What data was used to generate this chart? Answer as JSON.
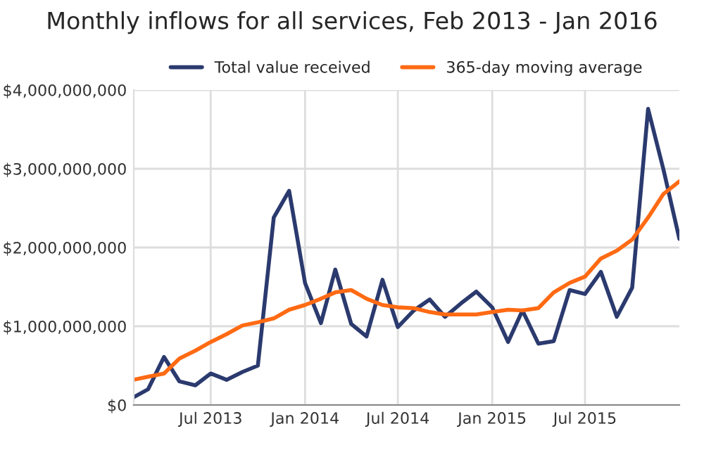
{
  "chart_data": {
    "type": "line",
    "title": "Monthly inflows for all services, Feb 2013 - Jan 2016",
    "x": [
      "2013-02",
      "2013-03",
      "2013-04",
      "2013-05",
      "2013-06",
      "2013-07",
      "2013-08",
      "2013-09",
      "2013-10",
      "2013-11",
      "2013-12",
      "2014-01",
      "2014-02",
      "2014-03",
      "2014-04",
      "2014-05",
      "2014-06",
      "2014-07",
      "2014-08",
      "2014-09",
      "2014-10",
      "2014-11",
      "2014-12",
      "2015-01",
      "2015-02",
      "2015-03",
      "2015-04",
      "2015-05",
      "2015-06",
      "2015-07",
      "2015-08",
      "2015-09",
      "2015-10",
      "2015-11",
      "2015-12",
      "2016-01"
    ],
    "series": [
      {
        "name": "Total value received",
        "color": "#2b3a6e",
        "values": [
          100000000,
          200000000,
          610000000,
          300000000,
          250000000,
          400000000,
          320000000,
          420000000,
          500000000,
          2380000000,
          2720000000,
          1550000000,
          1040000000,
          1720000000,
          1030000000,
          870000000,
          1590000000,
          990000000,
          1200000000,
          1340000000,
          1120000000,
          1290000000,
          1440000000,
          1240000000,
          800000000,
          1200000000,
          780000000,
          810000000,
          1460000000,
          1410000000,
          1690000000,
          1120000000,
          1490000000,
          3760000000,
          2990000000,
          2110000000
        ]
      },
      {
        "name": "365-day moving average",
        "color": "#ff6a13",
        "values": [
          320000000,
          360000000,
          400000000,
          590000000,
          690000000,
          800000000,
          900000000,
          1010000000,
          1050000000,
          1100000000,
          1210000000,
          1270000000,
          1350000000,
          1430000000,
          1460000000,
          1350000000,
          1270000000,
          1240000000,
          1230000000,
          1180000000,
          1150000000,
          1150000000,
          1150000000,
          1180000000,
          1210000000,
          1200000000,
          1230000000,
          1430000000,
          1550000000,
          1630000000,
          1860000000,
          1960000000,
          2100000000,
          2380000000,
          2680000000,
          2840000000
        ]
      }
    ],
    "xlim": [
      "2013-02",
      "2016-01"
    ],
    "xticks": [
      {
        "value": "2013-07",
        "label": "Jul 2013"
      },
      {
        "value": "2014-01",
        "label": "Jan 2014"
      },
      {
        "value": "2014-07",
        "label": "Jul 2014"
      },
      {
        "value": "2015-01",
        "label": "Jan 2015"
      },
      {
        "value": "2015-07",
        "label": "Jul 2015"
      }
    ],
    "ylim": [
      0,
      4000000000
    ],
    "yticks": [
      {
        "value": 0,
        "label": "$0"
      },
      {
        "value": 1000000000,
        "label": "$1,000,000,000"
      },
      {
        "value": 2000000000,
        "label": "$2,000,000,000"
      },
      {
        "value": 3000000000,
        "label": "$3,000,000,000"
      },
      {
        "value": 4000000000,
        "label": "$4,000,000,000"
      }
    ],
    "grid": true,
    "legend": "top",
    "marker": "none",
    "line_style": "solid"
  }
}
